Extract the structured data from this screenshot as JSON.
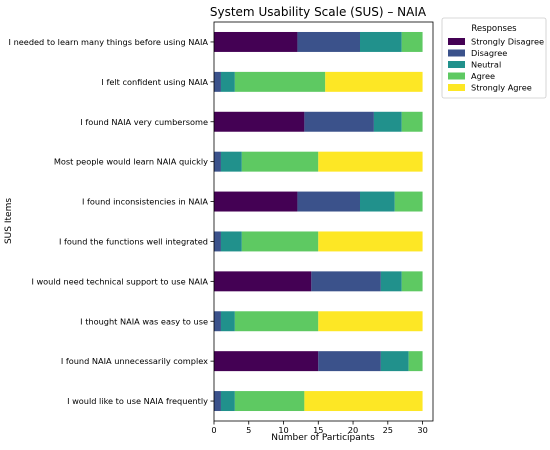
{
  "chart_data": {
    "type": "bar",
    "orientation": "horizontal",
    "stacked": true,
    "title": "System Usability Scale (SUS) – NAIA",
    "xlabel": "Number of Participants",
    "ylabel": "SUS Items",
    "xlim": [
      0,
      31.5
    ],
    "xticks": [
      0,
      5,
      10,
      15,
      20,
      25,
      30
    ],
    "grid": false,
    "legend": {
      "title": "Responses",
      "placement": "outside-top-right"
    },
    "categories": [
      "I needed to learn many things before using NAIA",
      "I felt confident using NAIA",
      "I found NAIA very cumbersome",
      "Most people would learn NAIA quickly",
      "I found inconsistencies in NAIA",
      "I found the functions well integrated",
      "I would need technical support to use NAIA",
      "I thought NAIA was easy to use",
      "I found NAIA unnecessarily complex",
      "I would like to use NAIA frequently"
    ],
    "series": [
      {
        "name": "Strongly Disagree",
        "color": "#440154",
        "values": [
          12,
          0,
          13,
          0,
          12,
          0,
          14,
          0,
          15,
          0
        ]
      },
      {
        "name": "Disagree",
        "color": "#3b528b",
        "values": [
          9,
          1,
          10,
          1,
          9,
          1,
          10,
          1,
          9,
          1
        ]
      },
      {
        "name": "Neutral",
        "color": "#21918c",
        "values": [
          6,
          2,
          4,
          3,
          5,
          3,
          3,
          2,
          4,
          2
        ]
      },
      {
        "name": "Agree",
        "color": "#5ec962",
        "values": [
          3,
          13,
          3,
          11,
          4,
          11,
          3,
          12,
          2,
          10
        ]
      },
      {
        "name": "Strongly Agree",
        "color": "#fde725",
        "values": [
          0,
          14,
          0,
          15,
          0,
          15,
          0,
          15,
          0,
          17
        ]
      }
    ]
  }
}
